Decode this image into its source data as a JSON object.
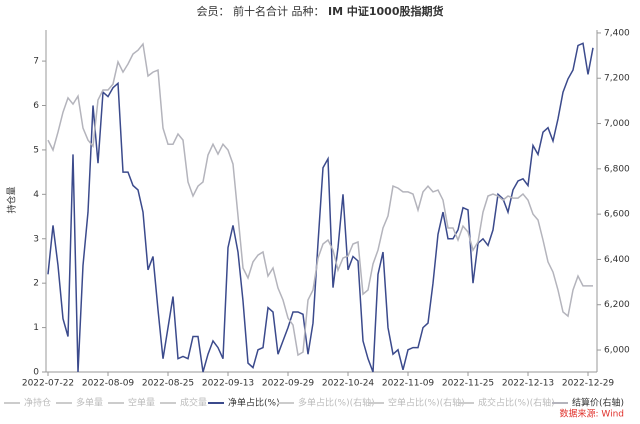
{
  "chart_data": {
    "type": "line",
    "title": "会员： 前十名合计 品种：",
    "title_highlight": "IM 中证1000股指期货",
    "y_label": "持仓量",
    "source": "数据来源: Wind",
    "categories": [
      "2022-07-22",
      null,
      null,
      null,
      null,
      null,
      null,
      null,
      null,
      null,
      null,
      null,
      "2022-08-09",
      null,
      null,
      null,
      null,
      null,
      null,
      null,
      null,
      null,
      null,
      null,
      "2022-08-25",
      null,
      null,
      null,
      null,
      null,
      null,
      null,
      null,
      null,
      null,
      null,
      "2022-09-13",
      null,
      null,
      null,
      null,
      null,
      null,
      null,
      null,
      null,
      null,
      null,
      "2022-09-29",
      null,
      null,
      null,
      null,
      null,
      null,
      null,
      null,
      null,
      null,
      null,
      "2022-10-24",
      null,
      null,
      null,
      null,
      null,
      null,
      null,
      null,
      null,
      null,
      null,
      "2022-11-09",
      null,
      null,
      null,
      null,
      null,
      null,
      null,
      null,
      null,
      null,
      null,
      "2022-11-25",
      null,
      null,
      null,
      null,
      null,
      null,
      null,
      null,
      null,
      null,
      null,
      "2022-12-13",
      null,
      null,
      null,
      null,
      null,
      null,
      null,
      null,
      null,
      null,
      null,
      "2022-12-29",
      null
    ],
    "ylim": [
      0,
      7.7
    ],
    "yticks": [
      0,
      1,
      2,
      3,
      4,
      5,
      6,
      7
    ],
    "y2lim": [
      5903,
      7413
    ],
    "y2ticks": [
      {
        "value": 6000,
        "label": "6,000"
      },
      {
        "value": 6200,
        "label": "6,200"
      },
      {
        "value": 6400,
        "label": "6,400"
      },
      {
        "value": 6600,
        "label": "6,600"
      },
      {
        "value": 6800,
        "label": "6,800"
      },
      {
        "value": 7000,
        "label": "7,000"
      },
      {
        "value": 7200,
        "label": "7,200"
      },
      {
        "value": 7400,
        "label": "7,400"
      }
    ],
    "series": [
      {
        "name": "净持仓",
        "color": "#cccccc",
        "visible": false
      },
      {
        "name": "多单量",
        "color": "#cccccc",
        "visible": false
      },
      {
        "name": "空单量",
        "color": "#cccccc",
        "visible": false
      },
      {
        "name": "成交量",
        "color": "#cccccc",
        "visible": false
      },
      {
        "name": "净单占比(%)",
        "color": "#3b4a8c",
        "visible": true,
        "axis": "y",
        "values": [
          2.2,
          3.3,
          2.4,
          1.2,
          0.8,
          4.9,
          0.0,
          2.4,
          3.6,
          6.0,
          4.7,
          6.3,
          6.2,
          6.4,
          6.5,
          4.5,
          4.5,
          4.2,
          4.1,
          3.6,
          2.3,
          2.6,
          1.4,
          0.3,
          1.0,
          1.7,
          0.3,
          0.35,
          0.3,
          0.8,
          0.8,
          0.0,
          0.4,
          0.7,
          0.55,
          0.3,
          2.8,
          3.3,
          2.7,
          1.6,
          0.2,
          0.1,
          0.5,
          0.55,
          1.45,
          1.35,
          0.4,
          0.7,
          1.0,
          1.35,
          1.35,
          1.3,
          0.4,
          1.1,
          2.9,
          4.6,
          4.8,
          1.9,
          2.8,
          4.0,
          2.3,
          2.6,
          2.5,
          0.7,
          0.3,
          0.0,
          2.2,
          2.7,
          1.0,
          0.4,
          0.5,
          0.05,
          0.5,
          0.55,
          0.55,
          1.0,
          1.1,
          2.0,
          3.1,
          3.6,
          3.0,
          3.0,
          3.2,
          3.7,
          3.65,
          2.0,
          2.9,
          3.0,
          2.85,
          3.2,
          4.0,
          3.9,
          3.6,
          4.1,
          4.3,
          4.35,
          4.2,
          5.1,
          4.9,
          5.4,
          5.5,
          5.2,
          5.7,
          6.3,
          6.6,
          6.8,
          7.35,
          7.4,
          6.7,
          7.3
        ]
      },
      {
        "name": "多单占比(%)(右轴)",
        "color": "#cccccc",
        "visible": false
      },
      {
        "name": "空单占比(%)(右轴)",
        "color": "#cccccc",
        "visible": false
      },
      {
        "name": "成交占比(%)(右轴)",
        "color": "#cccccc",
        "visible": false
      },
      {
        "name": "结算价(右轴)",
        "color": "#b4b4bc",
        "visible": true,
        "axis": "y2",
        "values": [
          6927,
          6883,
          6962,
          7050,
          7113,
          7086,
          7121,
          6980,
          6927,
          6900,
          7104,
          7148,
          7148,
          7174,
          7272,
          7227,
          7263,
          7307,
          7324,
          7351,
          7210,
          7227,
          7236,
          6980,
          6909,
          6909,
          6954,
          6927,
          6742,
          6680,
          6724,
          6742,
          6861,
          6909,
          6865,
          6909,
          6883,
          6821,
          6592,
          6362,
          6318,
          6389,
          6419,
          6433,
          6327,
          6362,
          6274,
          6221,
          6141,
          6110,
          5978,
          5991,
          6221,
          6265,
          6406,
          6468,
          6486,
          6441,
          6353,
          6406,
          6415,
          6468,
          6477,
          6247,
          6265,
          6380,
          6441,
          6539,
          6592,
          6724,
          6715,
          6698,
          6698,
          6689,
          6618,
          6698,
          6724,
          6698,
          6706,
          6662,
          6539,
          6539,
          6486,
          6547,
          6521,
          6441,
          6477,
          6609,
          6680,
          6689,
          6680,
          6662,
          6680,
          6671,
          6671,
          6689,
          6662,
          6600,
          6574,
          6486,
          6389,
          6344,
          6265,
          6168,
          6150,
          6265,
          6327,
          6283,
          6283,
          6283
        ]
      }
    ]
  }
}
